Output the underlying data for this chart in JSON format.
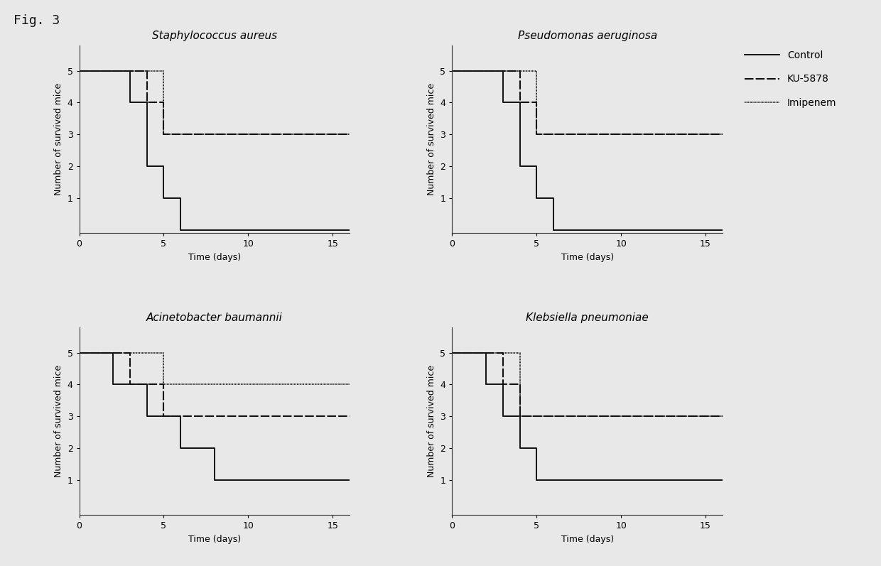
{
  "fig_label": "Fig. 3",
  "panels": [
    {
      "title": "Staphylococcus aureus",
      "curves": {
        "control": {
          "x": [
            0,
            3,
            3,
            4,
            4,
            5,
            5,
            6,
            6,
            7.5,
            7.5,
            16
          ],
          "y": [
            5,
            5,
            4,
            4,
            2,
            2,
            1,
            1,
            0,
            0,
            0,
            0
          ]
        },
        "ku5878": {
          "x": [
            0,
            3,
            3,
            4,
            4,
            5,
            5,
            16
          ],
          "y": [
            5,
            5,
            5,
            5,
            4,
            4,
            3,
            3
          ]
        },
        "imipenem": {
          "x": [
            0,
            3,
            3,
            5,
            5,
            16
          ],
          "y": [
            5,
            5,
            5,
            5,
            3,
            3
          ]
        }
      }
    },
    {
      "title": "Pseudomonas aeruginosa",
      "curves": {
        "control": {
          "x": [
            0,
            3,
            3,
            4,
            4,
            5,
            5,
            6,
            6,
            7.5,
            7.5,
            16
          ],
          "y": [
            5,
            5,
            4,
            4,
            2,
            2,
            1,
            1,
            0,
            0,
            0,
            0
          ]
        },
        "ku5878": {
          "x": [
            0,
            3,
            3,
            4,
            4,
            5,
            5,
            16
          ],
          "y": [
            5,
            5,
            5,
            5,
            4,
            4,
            3,
            3
          ]
        },
        "imipenem": {
          "x": [
            0,
            3,
            3,
            5,
            5,
            16
          ],
          "y": [
            5,
            5,
            5,
            5,
            3,
            3
          ]
        }
      }
    },
    {
      "title": "Acinetobacter baumannii",
      "curves": {
        "control": {
          "x": [
            0,
            2,
            2,
            4,
            4,
            6,
            6,
            8,
            8,
            16
          ],
          "y": [
            5,
            5,
            4,
            4,
            3,
            3,
            2,
            2,
            1,
            1
          ]
        },
        "ku5878": {
          "x": [
            0,
            3,
            3,
            5,
            5,
            16
          ],
          "y": [
            5,
            5,
            4,
            4,
            3,
            3
          ]
        },
        "imipenem": {
          "x": [
            0,
            3,
            3,
            5,
            5,
            16
          ],
          "y": [
            5,
            5,
            5,
            5,
            4,
            4
          ]
        }
      }
    },
    {
      "title": "Klebsiella pneumoniae",
      "curves": {
        "control": {
          "x": [
            0,
            2,
            2,
            3,
            3,
            4,
            4,
            5,
            5,
            16
          ],
          "y": [
            5,
            5,
            4,
            4,
            3,
            3,
            2,
            2,
            1,
            1
          ]
        },
        "ku5878": {
          "x": [
            0,
            2,
            2,
            3,
            3,
            4,
            4,
            16
          ],
          "y": [
            5,
            5,
            5,
            5,
            4,
            4,
            3,
            3
          ]
        },
        "imipenem": {
          "x": [
            0,
            2,
            2,
            4,
            4,
            16
          ],
          "y": [
            5,
            5,
            5,
            5,
            3,
            3
          ]
        }
      }
    }
  ],
  "xlabel": "Time (days)",
  "ylabel": "Number of survived mice",
  "xlim": [
    0,
    16
  ],
  "ylim": [
    -0.1,
    5.8
  ],
  "yticks": [
    1,
    2,
    3,
    4,
    5
  ],
  "xticks": [
    0,
    5,
    10,
    15
  ],
  "bg_color": "#e8e8e8",
  "line_color": "#111111",
  "control_lw": 1.4,
  "ku5878_lw": 1.5,
  "imipenem_lw": 1.2,
  "title_fontsize": 11,
  "label_fontsize": 9,
  "tick_fontsize": 9,
  "legend_fontsize": 10,
  "fig_label_fontsize": 13
}
